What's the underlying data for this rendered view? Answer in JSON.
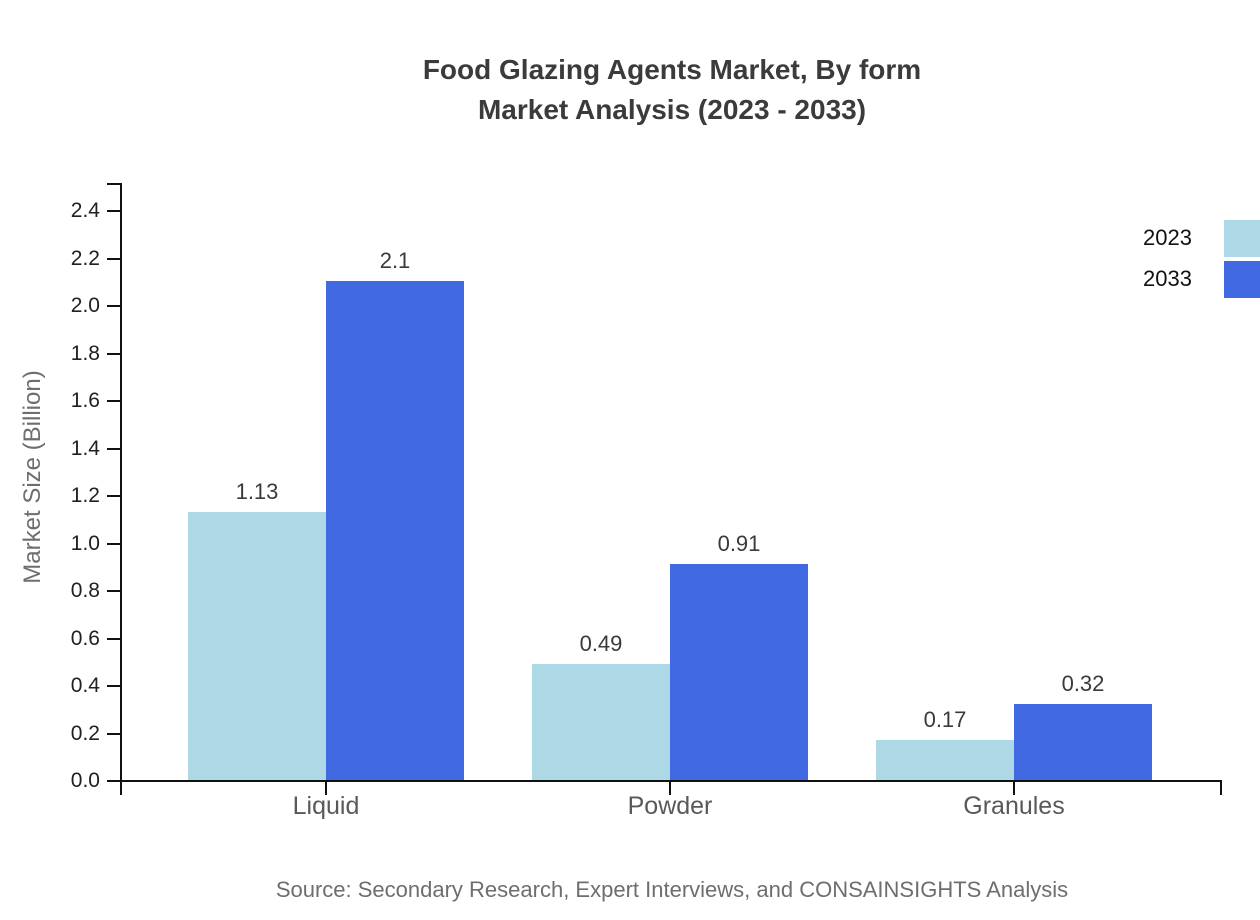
{
  "title": {
    "line1": "Food Glazing Agents Market, By form",
    "line2": "Market Analysis (2023 - 2033)"
  },
  "source": "Source: Secondary Research, Expert Interviews, and CONSAINSIGHTS Analysis",
  "legend": {
    "items": [
      {
        "label": "2023",
        "color": "#ADD8E6"
      },
      {
        "label": "2033",
        "color": "#4169E1"
      }
    ]
  },
  "chart_data": {
    "type": "bar",
    "title": "Food Glazing Agents Market, By form Market Analysis (2023 - 2033)",
    "categories": [
      "Liquid",
      "Powder",
      "Granules"
    ],
    "series": [
      {
        "name": "2023",
        "color": "#ADD8E6",
        "values": [
          1.13,
          0.49,
          0.17
        ],
        "labels": [
          "1.13",
          "0.49",
          "0.17"
        ]
      },
      {
        "name": "2033",
        "color": "#4169E1",
        "values": [
          2.1,
          0.91,
          0.32
        ],
        "labels": [
          "2.1",
          "0.91",
          "0.32"
        ]
      }
    ],
    "xlabel": "",
    "ylabel": "Market Size (Billion)",
    "ylim": [
      0,
      2.5
    ],
    "yticks": [
      "0.0",
      "0.2",
      "0.4",
      "0.6",
      "0.8",
      "1.0",
      "1.2",
      "1.4",
      "1.6",
      "1.8",
      "2.0",
      "2.2",
      "2.4"
    ],
    "grid": false,
    "legend_position": "top-right",
    "bar_label_color": "#3a3a3a",
    "axis_color": "#111111"
  }
}
